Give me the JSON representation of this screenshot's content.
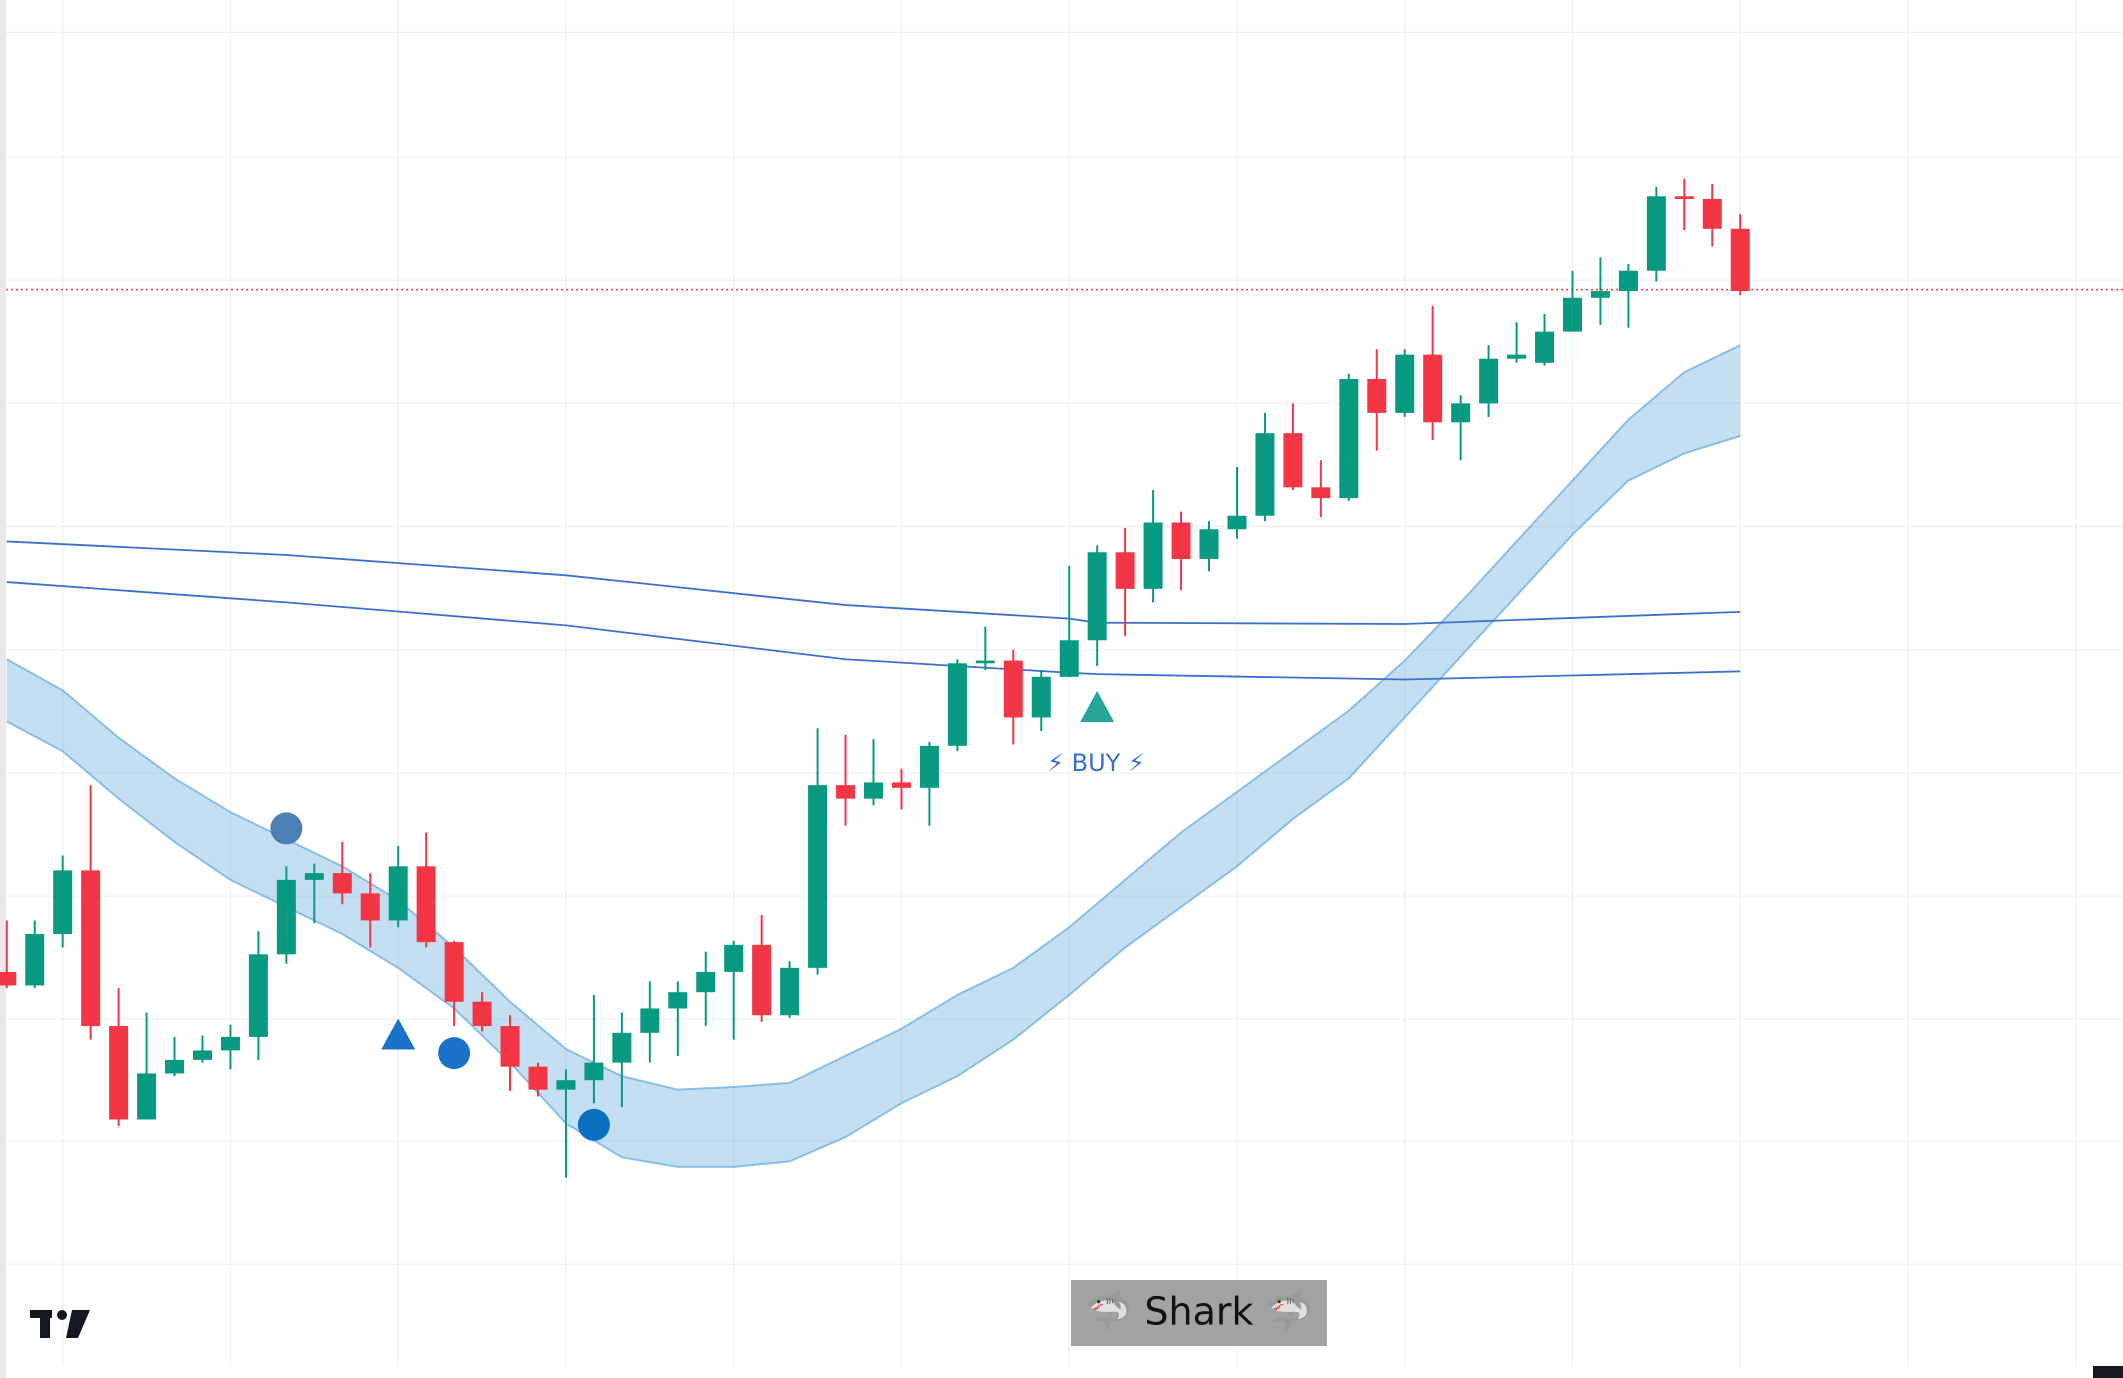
{
  "chart_data": {
    "type": "candlestick",
    "ylim": [
      0,
      1018
    ],
    "up_color": "#089981",
    "down_color": "#f23645",
    "open": [
      300,
      290,
      328,
      375,
      260,
      191,
      225,
      235,
      242,
      252,
      313,
      368,
      373,
      358,
      338,
      378,
      322,
      278,
      260,
      230,
      213,
      220,
      233,
      255,
      273,
      285,
      300,
      320,
      268,
      303,
      438,
      428,
      440,
      436,
      467,
      528,
      530,
      488,
      518,
      545,
      610,
      583,
      632,
      605,
      627,
      637,
      698,
      658,
      650,
      738,
      713,
      756,
      706,
      720,
      753,
      750,
      773,
      798,
      803,
      818,
      873,
      871,
      849
    ],
    "high": [
      338,
      338,
      386,
      438,
      288,
      270,
      252,
      253,
      261,
      330,
      378,
      380,
      396,
      373,
      393,
      403,
      323,
      285,
      268,
      233,
      228,
      283,
      270,
      293,
      293,
      315,
      323,
      342,
      308,
      480,
      475,
      472,
      450,
      470,
      531,
      555,
      538,
      523,
      600,
      615,
      628,
      656,
      640,
      633,
      673,
      713,
      720,
      678,
      742,
      760,
      760,
      792,
      726,
      763,
      780,
      786,
      818,
      828,
      823,
      880,
      886,
      882,
      860
    ],
    "low": [
      288,
      288,
      318,
      250,
      186,
      191,
      223,
      233,
      228,
      235,
      306,
      336,
      350,
      318,
      333,
      318,
      260,
      256,
      212,
      208,
      148,
      203,
      200,
      233,
      238,
      260,
      250,
      263,
      266,
      298,
      408,
      423,
      420,
      408,
      463,
      523,
      468,
      478,
      518,
      526,
      548,
      573,
      582,
      596,
      620,
      633,
      656,
      636,
      648,
      685,
      710,
      693,
      678,
      710,
      750,
      748,
      773,
      778,
      776,
      810,
      848,
      836,
      800
    ],
    "close": [
      290,
      328,
      375,
      260,
      191,
      225,
      235,
      242,
      252,
      313,
      368,
      373,
      358,
      338,
      378,
      322,
      278,
      260,
      230,
      213,
      220,
      233,
      255,
      273,
      285,
      300,
      320,
      268,
      303,
      438,
      428,
      440,
      436,
      467,
      528,
      530,
      488,
      518,
      545,
      610,
      583,
      632,
      605,
      627,
      637,
      698,
      658,
      650,
      738,
      713,
      756,
      706,
      720,
      753,
      756,
      773,
      798,
      803,
      818,
      873,
      871,
      849,
      803
    ],
    "band": {
      "color": "#64aade",
      "x": [
        0,
        2,
        4,
        6,
        8,
        10,
        12,
        14,
        16,
        18,
        20,
        22,
        24,
        26,
        28,
        30,
        32,
        34,
        36,
        38,
        40,
        42,
        44,
        46,
        48,
        50,
        52,
        54,
        56,
        58,
        60,
        62
      ],
      "upper": [
        531,
        508,
        473,
        443,
        418,
        398,
        378,
        353,
        318,
        278,
        243,
        223,
        213,
        215,
        218,
        238,
        258,
        283,
        303,
        333,
        368,
        403,
        433,
        463,
        493,
        530,
        573,
        618,
        663,
        708,
        743,
        763
      ],
      "lower": [
        485,
        463,
        428,
        396,
        368,
        348,
        328,
        303,
        273,
        233,
        188,
        163,
        156,
        156,
        160,
        178,
        203,
        223,
        250,
        283,
        318,
        348,
        378,
        413,
        443,
        488,
        533,
        578,
        623,
        663,
        683,
        696
      ]
    },
    "lines": [
      {
        "color": "#3d6fd1",
        "x": [
          0,
          10,
          20,
          30,
          38,
          39,
          50,
          62
        ],
        "values": [
          618,
          608,
          593,
          571,
          561,
          558,
          557,
          566
        ]
      },
      {
        "color": "#3d6fd1",
        "x": [
          0,
          10,
          20,
          30,
          38,
          39,
          50,
          62
        ],
        "values": [
          588,
          573,
          556,
          531,
          521,
          520,
          516,
          522
        ]
      }
    ],
    "markers": [
      {
        "shape": "circle",
        "color": "#4a80b4",
        "x": 10,
        "value": 406
      },
      {
        "shape": "triangle",
        "color": "#1a73c8",
        "x": 14,
        "value": 253
      },
      {
        "shape": "circle",
        "color": "#1a73c8",
        "x": 16,
        "value": 240
      },
      {
        "shape": "circle",
        "color": "#0a6fc0",
        "x": 21,
        "value": 187
      },
      {
        "shape": "triangle",
        "color": "#26a69a",
        "x": 39,
        "value": 495
      }
    ],
    "price_line": {
      "value": 804,
      "color": "#f23645"
    },
    "xgrid": [
      2,
      8,
      14,
      20,
      26,
      32,
      38,
      44,
      50,
      56,
      62,
      68,
      74
    ],
    "ygrid": [
      994,
      902,
      811,
      720,
      629,
      538,
      447,
      356,
      265,
      175,
      84
    ],
    "annotations": [
      "⚡ BUY ⚡",
      "🦈 Shark 🦈"
    ]
  }
}
